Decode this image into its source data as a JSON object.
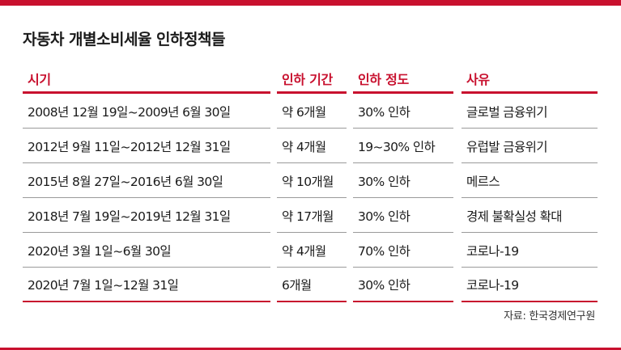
{
  "title": "자동차 개별소비세율 인하정책들",
  "headers": [
    "시기",
    "인하 기간",
    "인하 정도",
    "사유"
  ],
  "rows": [
    [
      "2008년 12월 19일~2009년 6월 30일",
      "약 6개월",
      "30% 인하",
      "글로벌 금융위기"
    ],
    [
      "2012년 9월 11일~2012년 12월 31일",
      "약 4개월",
      "19~30% 인하",
      "유럽발 금융위기"
    ],
    [
      "2015년 8월 27일~2016년 6월 30일",
      "약 10개월",
      "30% 인하",
      "메르스"
    ],
    [
      "2018년 7월 19일~2019년 12월 31일",
      "약 17개월",
      "30% 인하",
      "경제 불확실성 확대"
    ],
    [
      "2020년 3월 1일~6월 30일",
      "약 4개월",
      "70% 인하",
      "코로나-19"
    ],
    [
      "2020년 7월 1일~12월 31일",
      "6개월",
      "30% 인하",
      "코로나-19"
    ]
  ],
  "source": "자료: 한국경제연구원",
  "colors": {
    "accent": "#c8102e"
  }
}
